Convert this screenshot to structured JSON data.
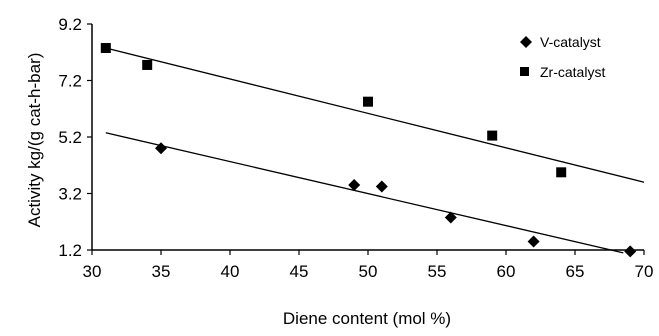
{
  "chart_data": {
    "type": "scatter",
    "xlabel": "Diene content (mol %)",
    "ylabel": "Activity kg/(g cat-h-bar)",
    "xlim": [
      30,
      70
    ],
    "ylim": [
      1.2,
      9.2
    ],
    "x_ticks": [
      30,
      35,
      40,
      45,
      50,
      55,
      60,
      65,
      70
    ],
    "y_ticks": [
      1.2,
      3.2,
      5.2,
      7.2,
      9.2
    ],
    "y_tick_labels": [
      "1.2",
      "3.2",
      "5.2",
      "7.2",
      "9.2"
    ],
    "grid": false,
    "legend_position": "top-right",
    "series": [
      {
        "name": "V-catalyst",
        "marker": "diamond",
        "color": "#000000",
        "x": [
          35,
          49,
          51,
          56,
          62,
          69
        ],
        "y": [
          4.8,
          3.5,
          3.45,
          2.35,
          1.5,
          1.15
        ],
        "trendline": {
          "x": [
            31,
            68.5
          ],
          "y": [
            5.35,
            1.1
          ]
        }
      },
      {
        "name": "Zr-catalyst",
        "marker": "square",
        "color": "#000000",
        "x": [
          31,
          34,
          50,
          59,
          64
        ],
        "y": [
          8.35,
          7.75,
          6.45,
          5.25,
          3.95
        ],
        "trendline": {
          "x": [
            31,
            70
          ],
          "y": [
            8.35,
            3.6
          ]
        }
      }
    ]
  }
}
